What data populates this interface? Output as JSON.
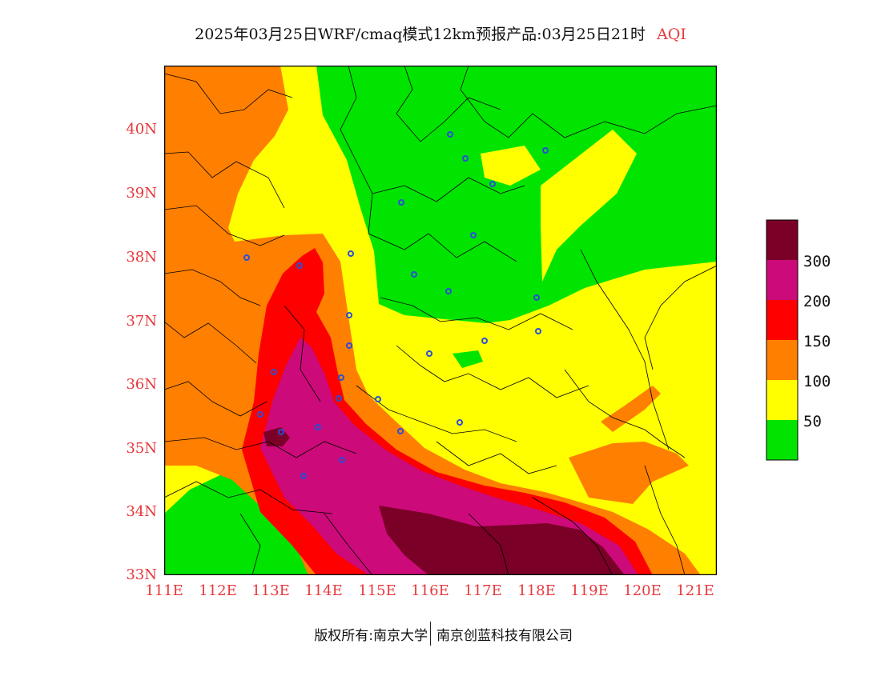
{
  "header": {
    "title": "2025年03月25日WRF/cmaq模式12km预报产品:03月25日21时",
    "variable": "AQI"
  },
  "axes": {
    "lat_labels": [
      "40N",
      "39N",
      "38N",
      "37N",
      "36N",
      "35N",
      "34N",
      "33N"
    ],
    "lon_labels": [
      "111E",
      "112E",
      "113E",
      "114E",
      "115E",
      "116E",
      "117E",
      "118E",
      "119E",
      "120E",
      "121E"
    ],
    "lat_range": [
      33,
      41
    ],
    "lon_range": [
      111,
      121.4
    ]
  },
  "legend": {
    "labels": [
      "300",
      "200",
      "150",
      "100",
      "50"
    ],
    "colors": [
      "#7a0027",
      "#cc0a79",
      "#ff0000",
      "#ff7f00",
      "#ffff00",
      "#00e400"
    ]
  },
  "map": {
    "background_color": "#ffff00",
    "region_colors": {
      "good": "#00e400",
      "moderate": "#ffff00",
      "unhealthy_sensitive": "#ff7f00",
      "unhealthy": "#ff0000",
      "very_unhealthy": "#cc0a79",
      "hazardous": "#7a0027"
    },
    "station_marker_color": "#2a4fd6"
  },
  "footer": {
    "copyright": "版权所有:南京大学",
    "company": "南京创蓝科技有限公司"
  }
}
